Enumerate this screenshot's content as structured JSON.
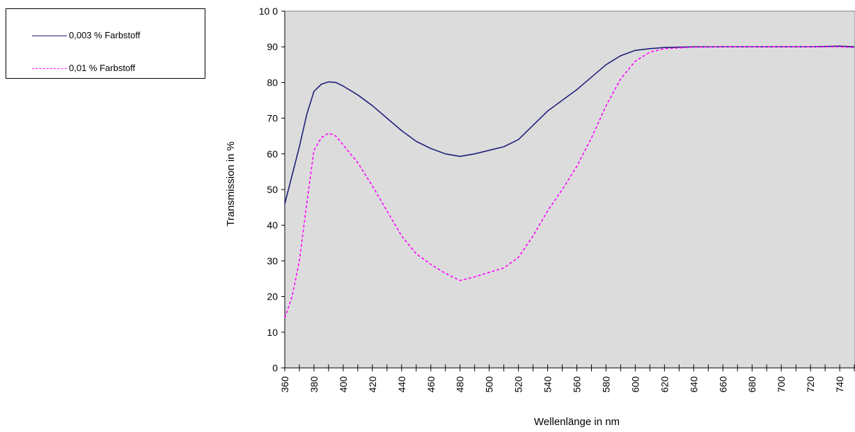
{
  "chart_data": {
    "type": "line",
    "xlabel": "Wellenlänge   in nm",
    "ylabel": "Transmission   in %",
    "xlim": [
      360,
      750
    ],
    "ylim": [
      0,
      100
    ],
    "xticks": [
      360,
      380,
      400,
      420,
      440,
      460,
      480,
      500,
      520,
      540,
      560,
      580,
      600,
      620,
      640,
      660,
      680,
      700,
      720,
      740
    ],
    "yticks": [
      0,
      10,
      20,
      30,
      40,
      50,
      60,
      70,
      80,
      90,
      100
    ],
    "ytick_labels": [
      "0",
      "10",
      "20",
      "30",
      "40",
      "50",
      "60",
      "70",
      "80",
      "90",
      "10 0"
    ],
    "grid": false,
    "plot_background": "#dcdcdc",
    "legend_position": "top-left",
    "series": [
      {
        "name": "0,003 % Farbstoff",
        "color": "#1f1f7a",
        "style": "solid",
        "points": [
          [
            360,
            46
          ],
          [
            365,
            54
          ],
          [
            370,
            62
          ],
          [
            375,
            71
          ],
          [
            380,
            77.5
          ],
          [
            385,
            79.5
          ],
          [
            390,
            80.2
          ],
          [
            395,
            80
          ],
          [
            400,
            79
          ],
          [
            410,
            76.5
          ],
          [
            420,
            73.5
          ],
          [
            430,
            70
          ],
          [
            440,
            66.5
          ],
          [
            450,
            63.5
          ],
          [
            460,
            61.5
          ],
          [
            470,
            60
          ],
          [
            480,
            59.3
          ],
          [
            490,
            60
          ],
          [
            500,
            61
          ],
          [
            510,
            62
          ],
          [
            520,
            64
          ],
          [
            530,
            68
          ],
          [
            540,
            72
          ],
          [
            550,
            75
          ],
          [
            560,
            78
          ],
          [
            570,
            81.5
          ],
          [
            580,
            85
          ],
          [
            590,
            87.5
          ],
          [
            600,
            89
          ],
          [
            610,
            89.5
          ],
          [
            620,
            89.8
          ],
          [
            640,
            90
          ],
          [
            660,
            90
          ],
          [
            680,
            90
          ],
          [
            700,
            90
          ],
          [
            720,
            90
          ],
          [
            740,
            90.2
          ],
          [
            750,
            90
          ]
        ]
      },
      {
        "name": "0,01 % Farbstoff",
        "color": "#ff00ff",
        "style": "dashed",
        "points": [
          [
            360,
            14
          ],
          [
            365,
            20
          ],
          [
            370,
            30
          ],
          [
            375,
            46
          ],
          [
            380,
            61
          ],
          [
            385,
            64.5
          ],
          [
            390,
            65.8
          ],
          [
            395,
            65
          ],
          [
            400,
            62.5
          ],
          [
            410,
            57.5
          ],
          [
            420,
            51
          ],
          [
            430,
            44
          ],
          [
            440,
            37
          ],
          [
            450,
            32
          ],
          [
            460,
            29
          ],
          [
            470,
            26.5
          ],
          [
            480,
            24.5
          ],
          [
            490,
            25.5
          ],
          [
            500,
            26.8
          ],
          [
            510,
            28
          ],
          [
            520,
            31
          ],
          [
            530,
            37
          ],
          [
            540,
            44
          ],
          [
            550,
            50
          ],
          [
            560,
            56.5
          ],
          [
            570,
            64.5
          ],
          [
            580,
            73.5
          ],
          [
            590,
            81
          ],
          [
            600,
            86
          ],
          [
            610,
            88.5
          ],
          [
            620,
            89.5
          ],
          [
            640,
            89.9
          ],
          [
            660,
            90
          ],
          [
            680,
            90
          ],
          [
            700,
            90
          ],
          [
            720,
            90
          ],
          [
            740,
            90
          ],
          [
            750,
            89.8
          ]
        ]
      }
    ]
  }
}
